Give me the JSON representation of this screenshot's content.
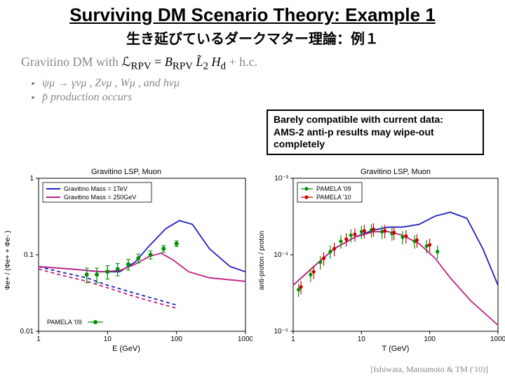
{
  "title": {
    "main": "Surviving DM Scenario Theory: Example 1",
    "sub": "生き延びているダークマター理論：例１",
    "main_fontsize": 26,
    "sub_fontsize": 20
  },
  "equation": {
    "prefix": "Gravitino DM with ",
    "lhs": "ℒ",
    "lsub": "RPV",
    "eq": " = ",
    "rhs_B": "B",
    "rhs_Bsub": "RPV",
    "rhs_L": "L̃",
    "rhs_Lsub": "2",
    "rhs_H": "H",
    "rhs_Hsub": "d",
    "tail": " + h.c."
  },
  "bullets": [
    {
      "text": "ψμ → γνμ ,  Zνμ ,  Wμ ,  and  hνμ"
    },
    {
      "text": "p̄ production occurs"
    }
  ],
  "callout": {
    "line1": "Barely compatible with current data:",
    "line2": "AMS-2   anti-p results may wipe-out",
    "line3": "completely"
  },
  "citation": "[Ishiwata, Matsumoto & TM ('10)]",
  "colors": {
    "blue": "#2020c0",
    "magenta": "#c02080",
    "green": "#009000",
    "red": "#d00000",
    "grey": "#888888",
    "background": "#ffffff",
    "black": "#000000"
  },
  "chart_left": {
    "type": "line",
    "title": "Gravitino LSP, Muon",
    "xlabel": "E (GeV)",
    "ylabel": "Φe+ / (Φe+ + Φe- )",
    "x_log": [
      1,
      1000
    ],
    "y_log": [
      0.01,
      1
    ],
    "x_ticks": [
      1,
      10,
      100,
      1000
    ],
    "y_ticks": [
      0.01,
      0.1,
      1
    ],
    "x_tick_labels": [
      "1",
      "10",
      "100",
      "1000"
    ],
    "y_tick_labels": [
      "0.01",
      "0.1",
      "1"
    ],
    "legend": [
      {
        "label": "Gravitino Mass = 1TeV",
        "color": "#2020c0"
      },
      {
        "label": "Gravitino Mass = 250GeV",
        "color": "#c02080"
      }
    ],
    "pamela_label": "PAMELA '09",
    "pamela_color": "#009000",
    "curve_blue_solid": [
      [
        1,
        0.07
      ],
      [
        3,
        0.065
      ],
      [
        8,
        0.06
      ],
      [
        15,
        0.06
      ],
      [
        25,
        0.08
      ],
      [
        40,
        0.13
      ],
      [
        70,
        0.22
      ],
      [
        110,
        0.28
      ],
      [
        170,
        0.25
      ],
      [
        300,
        0.12
      ],
      [
        600,
        0.07
      ],
      [
        1000,
        0.06
      ]
    ],
    "curve_blue_dashed": [
      [
        1,
        0.07
      ],
      [
        2,
        0.06
      ],
      [
        5,
        0.05
      ],
      [
        10,
        0.04
      ],
      [
        30,
        0.03
      ],
      [
        100,
        0.022
      ]
    ],
    "curve_mag_solid": [
      [
        1,
        0.07
      ],
      [
        3,
        0.065
      ],
      [
        8,
        0.06
      ],
      [
        15,
        0.062
      ],
      [
        25,
        0.075
      ],
      [
        40,
        0.095
      ],
      [
        60,
        0.105
      ],
      [
        90,
        0.085
      ],
      [
        150,
        0.06
      ],
      [
        300,
        0.05
      ],
      [
        1000,
        0.045
      ]
    ],
    "curve_mag_dashed": [
      [
        1,
        0.065
      ],
      [
        2,
        0.055
      ],
      [
        5,
        0.045
      ],
      [
        10,
        0.037
      ],
      [
        30,
        0.027
      ],
      [
        100,
        0.02
      ]
    ],
    "points": [
      [
        5,
        0.055
      ],
      [
        7,
        0.055
      ],
      [
        10,
        0.06
      ],
      [
        14,
        0.065
      ],
      [
        20,
        0.075
      ],
      [
        28,
        0.09
      ],
      [
        42,
        0.1
      ],
      [
        65,
        0.12
      ],
      [
        100,
        0.14
      ]
    ],
    "err": 0.012,
    "line_width": 1.8
  },
  "chart_right": {
    "type": "scatter-line",
    "title": "Gravitino LSP, Muon",
    "xlabel": "T (GeV)",
    "ylabel": "anti-proton / proton",
    "x_log": [
      1,
      1000
    ],
    "y_log": [
      1e-05,
      0.001
    ],
    "x_ticks": [
      1,
      10,
      100,
      1000
    ],
    "y_ticks": [
      1e-05,
      0.0001,
      0.001
    ],
    "x_tick_labels": [
      "1",
      "10",
      "100",
      "1000"
    ],
    "y_tick_labels": [
      "10⁻⁵",
      "10⁻⁴",
      "10⁻³"
    ],
    "legend": [
      {
        "label": "PAMELA '09",
        "color": "#009000",
        "marker": "circle"
      },
      {
        "label": "PAMELA '10",
        "color": "#d00000",
        "marker": "circle"
      }
    ],
    "curve_blue": [
      [
        1,
        4e-05
      ],
      [
        2,
        7e-05
      ],
      [
        4,
        0.00012
      ],
      [
        8,
        0.00017
      ],
      [
        15,
        0.00021
      ],
      [
        25,
        0.00023
      ],
      [
        40,
        0.00023
      ],
      [
        70,
        0.00025
      ],
      [
        120,
        0.00032
      ],
      [
        200,
        0.00036
      ],
      [
        350,
        0.0003
      ],
      [
        600,
        0.00012
      ],
      [
        1000,
        4e-05
      ]
    ],
    "curve_mag": [
      [
        1,
        4e-05
      ],
      [
        2,
        7e-05
      ],
      [
        4,
        0.00012
      ],
      [
        8,
        0.00017
      ],
      [
        15,
        0.0002
      ],
      [
        25,
        0.0002
      ],
      [
        40,
        0.00018
      ],
      [
        70,
        0.00014
      ],
      [
        120,
        9e-05
      ],
      [
        200,
        5e-05
      ],
      [
        400,
        2.5e-05
      ],
      [
        1000,
        1.2e-05
      ]
    ],
    "points_green": [
      [
        1.2,
        3.5e-05
      ],
      [
        1.8,
        5.5e-05
      ],
      [
        2.5,
        8e-05
      ],
      [
        3.5,
        0.00011
      ],
      [
        5,
        0.00015
      ],
      [
        7,
        0.00018
      ],
      [
        10,
        0.0002
      ],
      [
        14,
        0.00021
      ],
      [
        20,
        0.0002
      ],
      [
        28,
        0.00019
      ],
      [
        40,
        0.00017
      ],
      [
        60,
        0.00015
      ],
      [
        90,
        0.00013
      ],
      [
        130,
        0.00011
      ]
    ],
    "points_red": [
      [
        1.3,
        3.8e-05
      ],
      [
        2.0,
        6e-05
      ],
      [
        2.8,
        9e-05
      ],
      [
        4,
        0.00012
      ],
      [
        6,
        0.00016
      ],
      [
        8,
        0.000185
      ],
      [
        11,
        0.000205
      ],
      [
        15,
        0.000215
      ],
      [
        22,
        0.000205
      ],
      [
        30,
        0.000195
      ],
      [
        45,
        0.000175
      ],
      [
        65,
        0.000155
      ],
      [
        100,
        0.000135
      ]
    ],
    "err_rel": 0.2,
    "line_width": 1.8
  }
}
